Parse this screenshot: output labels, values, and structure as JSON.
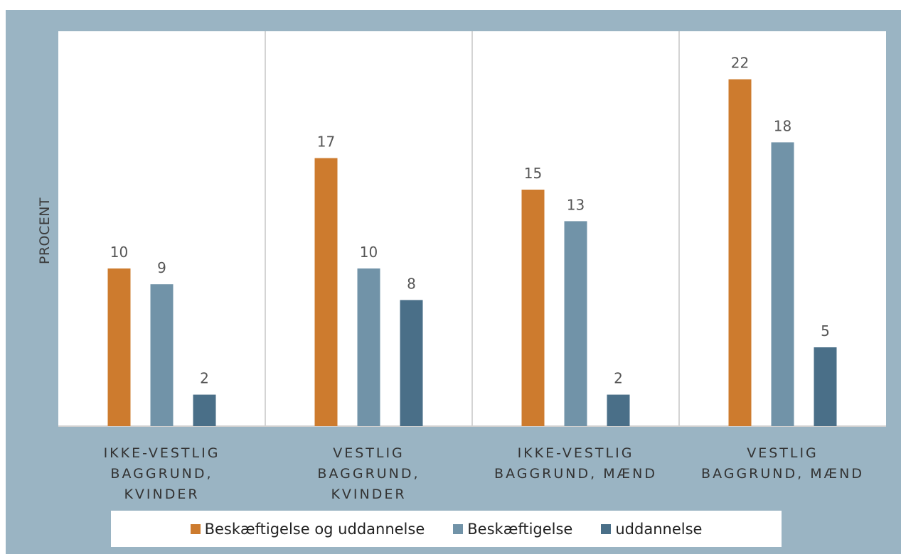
{
  "chart_data": {
    "type": "bar",
    "ylabel": "PROCENT",
    "xlabel": "",
    "categories": [
      [
        "IKKE-VESTLIG",
        "BAGGRUND,",
        "KVINDER"
      ],
      [
        "VESTLIG",
        "BAGGRUND,",
        "KVINDER"
      ],
      [
        "IKKE-VESTLIG",
        "BAGGRUND, MÆND"
      ],
      [
        "VESTLIG",
        "BAGGRUND, MÆND"
      ]
    ],
    "series": [
      {
        "name": "Beskæftigelse og uddannelse",
        "values": [
          10,
          17,
          15,
          22
        ],
        "color": "#cd7b2e"
      },
      {
        "name": "Beskæftigelse",
        "values": [
          9,
          10,
          13,
          18
        ],
        "color": "#7193a8"
      },
      {
        "name": "uddannelse",
        "values": [
          2,
          8,
          2,
          5
        ],
        "color": "#4a6f88"
      }
    ],
    "ylim": [
      0,
      25
    ],
    "grid": false,
    "data_labels": true,
    "legend_position": "bottom"
  }
}
